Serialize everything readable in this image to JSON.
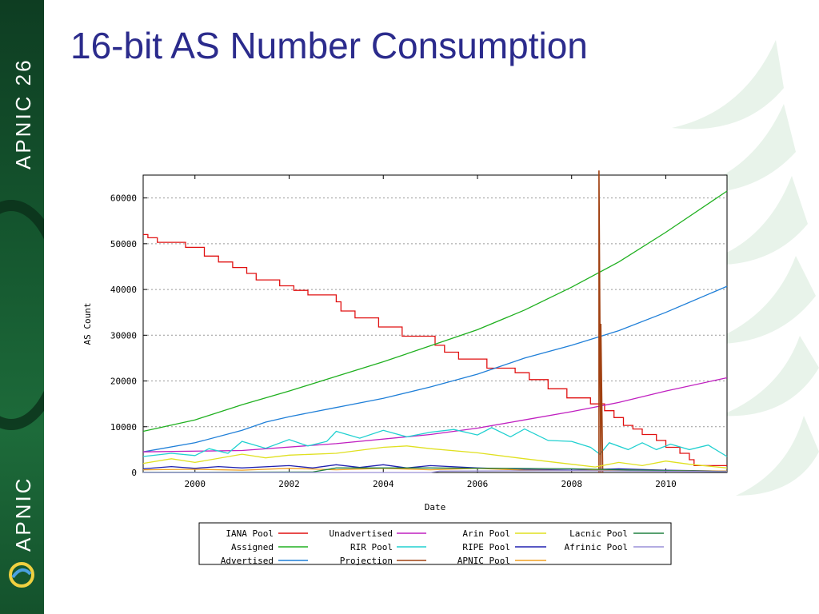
{
  "slide": {
    "title": "16-bit AS Number Consumption",
    "sidebar_top_text": "APNIC 26",
    "sidebar_bottom_text": "APNIC",
    "logo_icon": "apnic-swirl-logo",
    "background_icon": "fern-leaf-watermark",
    "colors": {
      "title": "#2b2b8c",
      "sidebar": "#15572f"
    }
  },
  "chart_data": {
    "type": "line",
    "title": "",
    "xlabel": "Date",
    "ylabel": "AS Count",
    "xlim": [
      1998.9,
      2011.3
    ],
    "ylim": [
      0,
      65000
    ],
    "x_ticks": [
      2000,
      2002,
      2004,
      2006,
      2008,
      2010
    ],
    "y_ticks": [
      0,
      10000,
      20000,
      30000,
      40000,
      50000,
      60000
    ],
    "grid": true,
    "legend_position": "bottom",
    "series": [
      {
        "name": "IANA Pool",
        "color": "#e01010",
        "style": "step",
        "points": [
          [
            1998.9,
            52000
          ],
          [
            1999.0,
            51300
          ],
          [
            1999.2,
            50300
          ],
          [
            1999.8,
            49200
          ],
          [
            2000.2,
            47300
          ],
          [
            2000.5,
            46000
          ],
          [
            2000.8,
            44800
          ],
          [
            2001.1,
            43500
          ],
          [
            2001.3,
            42100
          ],
          [
            2001.8,
            40800
          ],
          [
            2002.1,
            39800
          ],
          [
            2002.4,
            38800
          ],
          [
            2003.0,
            37300
          ],
          [
            2003.1,
            35300
          ],
          [
            2003.4,
            33800
          ],
          [
            2003.9,
            31800
          ],
          [
            2004.4,
            29800
          ],
          [
            2005.1,
            27800
          ],
          [
            2005.3,
            26300
          ],
          [
            2005.6,
            24800
          ],
          [
            2006.2,
            22800
          ],
          [
            2006.8,
            21800
          ],
          [
            2007.1,
            20300
          ],
          [
            2007.5,
            18300
          ],
          [
            2007.9,
            16300
          ],
          [
            2008.4,
            15000
          ],
          [
            2008.7,
            13500
          ],
          [
            2008.9,
            12000
          ],
          [
            2009.1,
            10300
          ],
          [
            2009.3,
            9500
          ],
          [
            2009.5,
            8300
          ],
          [
            2009.8,
            7000
          ],
          [
            2010.0,
            5500
          ],
          [
            2010.3,
            4200
          ],
          [
            2010.5,
            2800
          ],
          [
            2010.6,
            1500
          ],
          [
            2011.3,
            1500
          ]
        ]
      },
      {
        "name": "Assigned",
        "color": "#20b020",
        "style": "line",
        "points": [
          [
            1998.9,
            9000
          ],
          [
            2000.0,
            11500
          ],
          [
            2001.0,
            14800
          ],
          [
            2002.0,
            17800
          ],
          [
            2003.0,
            21000
          ],
          [
            2004.0,
            24200
          ],
          [
            2005.0,
            27700
          ],
          [
            2006.0,
            31200
          ],
          [
            2007.0,
            35500
          ],
          [
            2008.0,
            40500
          ],
          [
            2009.0,
            46000
          ],
          [
            2010.0,
            52500
          ],
          [
            2011.3,
            61500
          ]
        ]
      },
      {
        "name": "Advertised",
        "color": "#1f7fd8",
        "style": "line",
        "points": [
          [
            1998.9,
            4500
          ],
          [
            2000.0,
            6500
          ],
          [
            2001.0,
            9200
          ],
          [
            2001.5,
            11000
          ],
          [
            2002.0,
            12200
          ],
          [
            2003.0,
            14200
          ],
          [
            2004.0,
            16200
          ],
          [
            2005.0,
            18700
          ],
          [
            2006.0,
            21500
          ],
          [
            2007.0,
            25000
          ],
          [
            2008.0,
            27800
          ],
          [
            2009.0,
            31000
          ],
          [
            2010.0,
            35000
          ],
          [
            2011.3,
            40700
          ]
        ]
      },
      {
        "name": "Unadvertised",
        "color": "#c020c0",
        "style": "line",
        "points": [
          [
            1998.9,
            4500
          ],
          [
            2001.0,
            4800
          ],
          [
            2003.0,
            6300
          ],
          [
            2005.0,
            8300
          ],
          [
            2006.0,
            9700
          ],
          [
            2007.0,
            11500
          ],
          [
            2008.0,
            13300
          ],
          [
            2009.0,
            15300
          ],
          [
            2010.0,
            17800
          ],
          [
            2011.3,
            20700
          ]
        ]
      },
      {
        "name": "RIR Pool",
        "color": "#20d0d0",
        "style": "sawtooth",
        "points": [
          [
            1998.9,
            3500
          ],
          [
            1999.5,
            4200
          ],
          [
            2000.0,
            3700
          ],
          [
            2000.3,
            5200
          ],
          [
            2000.7,
            4200
          ],
          [
            2001.0,
            6800
          ],
          [
            2001.5,
            5300
          ],
          [
            2002.0,
            7200
          ],
          [
            2002.4,
            5800
          ],
          [
            2002.8,
            6800
          ],
          [
            2003.0,
            9000
          ],
          [
            2003.5,
            7500
          ],
          [
            2004.0,
            9200
          ],
          [
            2004.5,
            7800
          ],
          [
            2005.0,
            8800
          ],
          [
            2005.5,
            9400
          ],
          [
            2006.0,
            8200
          ],
          [
            2006.3,
            9800
          ],
          [
            2006.7,
            7800
          ],
          [
            2007.0,
            9500
          ],
          [
            2007.5,
            7000
          ],
          [
            2008.0,
            6800
          ],
          [
            2008.4,
            5500
          ],
          [
            2008.6,
            4000
          ],
          [
            2008.8,
            6500
          ],
          [
            2009.2,
            5000
          ],
          [
            2009.5,
            6500
          ],
          [
            2009.8,
            5000
          ],
          [
            2010.1,
            6200
          ],
          [
            2010.5,
            5000
          ],
          [
            2010.9,
            6000
          ],
          [
            2011.3,
            3500
          ]
        ]
      },
      {
        "name": "Projection",
        "color": "#a04010",
        "style": "spike",
        "points": [
          [
            2008.58,
            0
          ],
          [
            2008.58,
            66000
          ],
          [
            2008.62,
            0
          ],
          [
            2008.62,
            32500
          ],
          [
            2008.66,
            0
          ]
        ]
      },
      {
        "name": "Arin Pool",
        "color": "#e0e020",
        "style": "sawtooth",
        "points": [
          [
            1998.9,
            2000
          ],
          [
            1999.5,
            3000
          ],
          [
            2000.0,
            2200
          ],
          [
            2001.0,
            4000
          ],
          [
            2001.5,
            3200
          ],
          [
            2002.0,
            3800
          ],
          [
            2003.0,
            4200
          ],
          [
            2004.0,
            5500
          ],
          [
            2004.5,
            5800
          ],
          [
            2005.0,
            5200
          ],
          [
            2006.0,
            4300
          ],
          [
            2007.0,
            3000
          ],
          [
            2008.0,
            1800
          ],
          [
            2008.5,
            1200
          ],
          [
            2009.0,
            2200
          ],
          [
            2009.5,
            1500
          ],
          [
            2010.0,
            2500
          ],
          [
            2010.5,
            1800
          ],
          [
            2011.3,
            1000
          ]
        ]
      },
      {
        "name": "RIPE Pool",
        "color": "#2020b0",
        "style": "sawtooth",
        "points": [
          [
            1998.9,
            800
          ],
          [
            1999.5,
            1300
          ],
          [
            2000.0,
            900
          ],
          [
            2000.5,
            1300
          ],
          [
            2001.0,
            1000
          ],
          [
            2002.0,
            1500
          ],
          [
            2002.5,
            1000
          ],
          [
            2003.0,
            1700
          ],
          [
            2003.5,
            1100
          ],
          [
            2004.0,
            1700
          ],
          [
            2004.5,
            1000
          ],
          [
            2005.0,
            1500
          ],
          [
            2006.0,
            1000
          ],
          [
            2007.0,
            700
          ],
          [
            2008.0,
            500
          ],
          [
            2009.0,
            800
          ],
          [
            2010.0,
            500
          ],
          [
            2011.3,
            300
          ]
        ]
      },
      {
        "name": "APNIC Pool",
        "color": "#f0a020",
        "style": "sawtooth",
        "points": [
          [
            1998.9,
            600
          ],
          [
            2000.0,
            700
          ],
          [
            2001.0,
            500
          ],
          [
            2002.0,
            900
          ],
          [
            2003.0,
            600
          ],
          [
            2004.0,
            900
          ],
          [
            2005.0,
            600
          ],
          [
            2006.0,
            900
          ],
          [
            2007.0,
            500
          ],
          [
            2008.0,
            400
          ],
          [
            2009.0,
            600
          ],
          [
            2010.0,
            400
          ],
          [
            2011.3,
            300
          ]
        ]
      },
      {
        "name": "Lacnic Pool",
        "color": "#208040",
        "style": "line",
        "points": [
          [
            1998.9,
            50
          ],
          [
            2002.5,
            100
          ],
          [
            2003.0,
            1000
          ],
          [
            2005.0,
            1000
          ],
          [
            2008.0,
            800
          ],
          [
            2009.0,
            600
          ],
          [
            2011.3,
            200
          ]
        ]
      },
      {
        "name": "Afrinic Pool",
        "color": "#9a90d8",
        "style": "line",
        "points": [
          [
            1998.9,
            0
          ],
          [
            2005.0,
            0
          ],
          [
            2005.2,
            300
          ],
          [
            2008.0,
            400
          ],
          [
            2011.3,
            200
          ]
        ]
      }
    ]
  }
}
